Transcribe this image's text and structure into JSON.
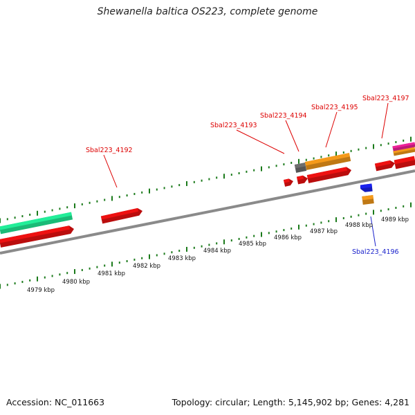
{
  "title": "Shewanella baltica OS223, complete genome",
  "footer": {
    "accession": "Accession: NC_011663",
    "summary": "Topology: circular; Length: 5,145,902 bp; Genes: 4,281"
  },
  "colors": {
    "backbone": "#8a8a8a",
    "tick": "#1a7a1a",
    "red_gene": "#ee1111",
    "orange_gene": "#f59a1a",
    "green_gene": "#22ee99",
    "grey_gene": "#6e6e6e",
    "blue_gene": "#1a22ee",
    "pink_gene": "#ee2299",
    "label_red": "#dd0000",
    "label_blue": "#1a22cc"
  },
  "scale_labels": [
    "4979 kbp",
    "4980 kbp",
    "4981 kbp",
    "4982 kbp",
    "4983 kbp",
    "4984 kbp",
    "4985 kbp",
    "4986 kbp",
    "4987 kbp",
    "4988 kbp",
    "4989 kbp"
  ],
  "gene_labels": [
    {
      "text": "Sbal223_4192",
      "color": "red"
    },
    {
      "text": "Sbal223_4193",
      "color": "red"
    },
    {
      "text": "Sbal223_4194",
      "color": "red"
    },
    {
      "text": "Sbal223_4195",
      "color": "red"
    },
    {
      "text": "Sbal223_4197",
      "color": "red"
    },
    {
      "text": "Sbal223_4196",
      "color": "blue"
    }
  ]
}
